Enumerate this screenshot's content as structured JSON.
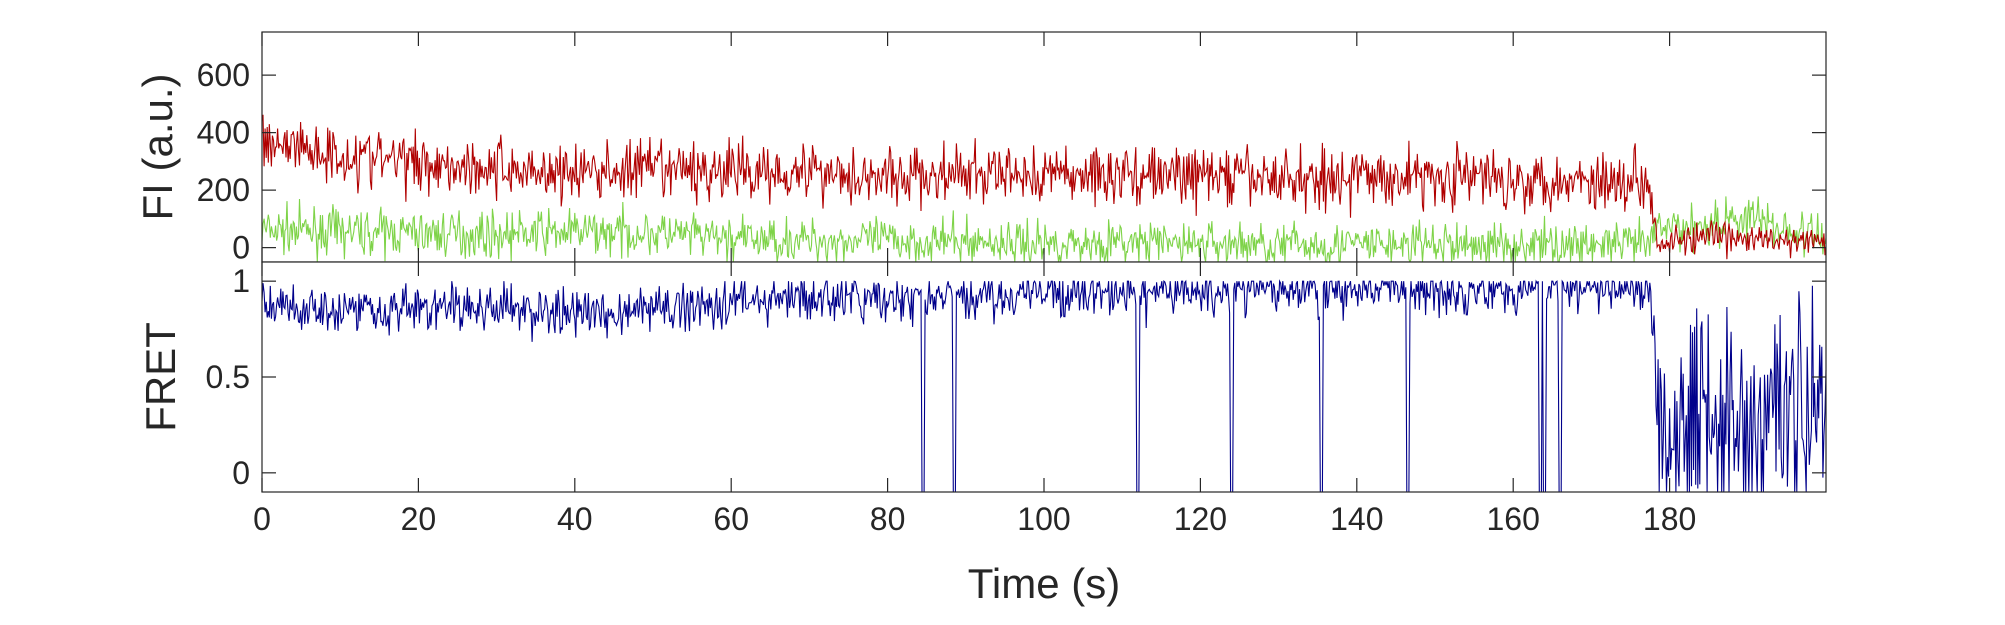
{
  "chart_data": [
    {
      "type": "line",
      "title": "",
      "ylabel": "FI (a.u.)",
      "xlabel": "",
      "xlim": [
        0,
        200
      ],
      "ylim": [
        -50,
        750
      ],
      "yticks": [
        0,
        200,
        400,
        600
      ],
      "ytick_labels": [
        "0",
        "200",
        "400",
        "600"
      ],
      "grid": false,
      "legend": "none",
      "series": [
        {
          "color": "#b00000",
          "x": [
            0,
            10,
            20,
            30,
            40,
            50,
            60,
            70,
            80,
            90,
            100,
            110,
            120,
            130,
            140,
            150,
            160,
            170,
            177.5,
            178.5,
            185,
            190,
            195,
            200
          ],
          "values": [
            380,
            320,
            300,
            275,
            260,
            270,
            265,
            270,
            245,
            250,
            255,
            255,
            250,
            240,
            245,
            250,
            240,
            235,
            235,
            20,
            35,
            30,
            20,
            20
          ]
        },
        {
          "color": "#7ed348",
          "x": [
            0,
            10,
            20,
            30,
            40,
            50,
            60,
            70,
            80,
            90,
            100,
            110,
            120,
            130,
            140,
            150,
            160,
            170,
            177.5,
            178.5,
            185,
            190,
            195,
            200
          ],
          "values": [
            60,
            55,
            50,
            45,
            55,
            50,
            30,
            25,
            25,
            20,
            15,
            15,
            15,
            10,
            10,
            10,
            10,
            10,
            10,
            65,
            80,
            110,
            60,
            30
          ]
        }
      ]
    },
    {
      "type": "line",
      "title": "",
      "ylabel": "FRET",
      "xlabel": "Time (s)",
      "xlim": [
        0,
        200
      ],
      "ylim": [
        -0.1,
        1.1
      ],
      "xticks": [
        0,
        20,
        40,
        60,
        80,
        100,
        120,
        140,
        160,
        180
      ],
      "xtick_labels": [
        "0",
        "20",
        "40",
        "60",
        "80",
        "100",
        "120",
        "140",
        "160",
        "180"
      ],
      "yticks": [
        0,
        0.5,
        1
      ],
      "ytick_labels": [
        "0",
        "0.5",
        "1"
      ],
      "grid": false,
      "legend": "none",
      "series": [
        {
          "color": "#00008b",
          "x": [
            0,
            10,
            20,
            30,
            40,
            50,
            60,
            70,
            80,
            90,
            100,
            110,
            120,
            130,
            140,
            150,
            160,
            170,
            177.5,
            178.5,
            185,
            190,
            195,
            200
          ],
          "values": [
            0.87,
            0.86,
            0.86,
            0.86,
            0.83,
            0.85,
            0.9,
            0.91,
            0.9,
            0.92,
            0.94,
            0.94,
            0.94,
            0.96,
            0.96,
            0.96,
            0.96,
            0.96,
            0.96,
            0.3,
            0.35,
            0.25,
            0.3,
            0.4
          ],
          "drops_to_zero_at": [
            84.5,
            88.5,
            112,
            124,
            135.5,
            146.5,
            163.5,
            164,
            166
          ]
        }
      ]
    }
  ]
}
